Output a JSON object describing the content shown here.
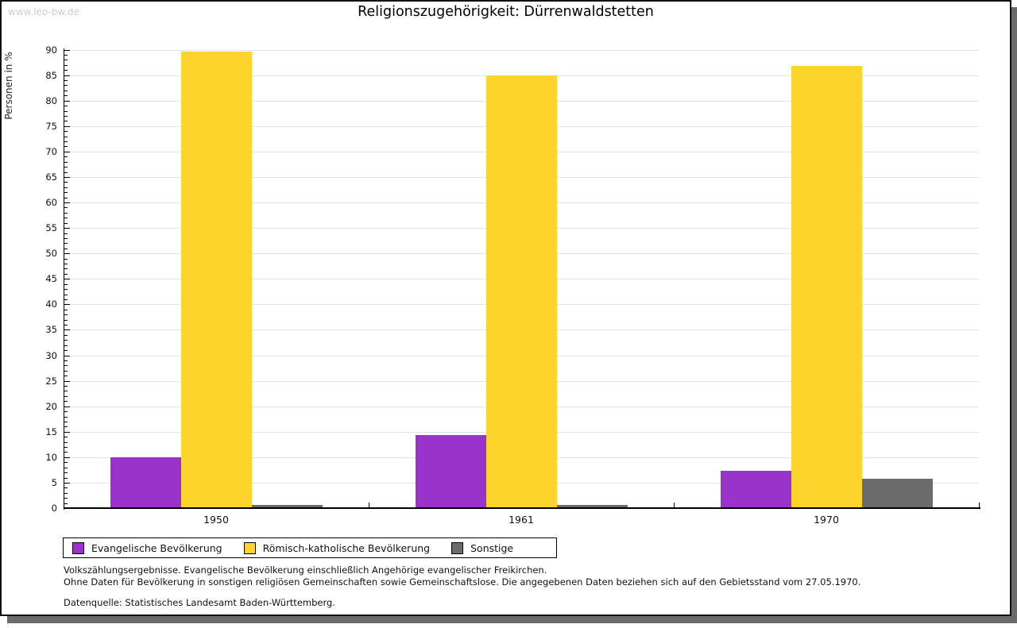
{
  "watermark": "www.leo-bw.de",
  "title": "Religionszugehörigkeit: Dürrenwaldstetten",
  "chart_data": {
    "type": "bar",
    "title": "Religionszugehörigkeit: Dürrenwaldstetten",
    "ylabel": "Personen in %",
    "categories": [
      "1950",
      "1961",
      "1970"
    ],
    "series": [
      {
        "name": "Evangelische Bevölkerung",
        "color": "#9933cc",
        "values": [
          9.9,
          14.3,
          7.4
        ]
      },
      {
        "name": "Römisch-katholische Bevölkerung",
        "color": "#fcd42c",
        "values": [
          89.6,
          85.0,
          86.8
        ]
      },
      {
        "name": "Sonstige",
        "color": "#6b6b6b",
        "values": [
          0.6,
          0.6,
          5.8
        ]
      }
    ],
    "ylim": [
      0,
      90
    ],
    "ytick_major": 5,
    "ytick_minor": 1,
    "grid": true,
    "legend_position": "bottom-left"
  },
  "footnotes": [
    "Volkszählungsergebnisse. Evangelische Bevölkerung einschließlich Angehörige evangelischer Freikirchen.",
    "Ohne Daten für Bevölkerung in sonstigen religiösen Gemeinschaften sowie Gemeinschaftslose. Die angegebenen Daten beziehen sich auf den Gebietsstand vom 27.05.1970.",
    "Datenquelle: Statistisches Landesamt Baden-Württemberg."
  ],
  "colors": {
    "grid": "#e3e3e3",
    "axis": "#000000",
    "watermark": "#cccccc",
    "frame_shadow": "#6b6b6b"
  }
}
